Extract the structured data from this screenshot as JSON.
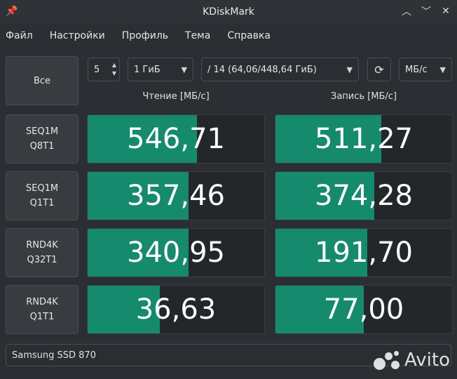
{
  "window": {
    "title": "KDiskMark"
  },
  "menu": [
    "Файл",
    "Настройки",
    "Профиль",
    "Тема",
    "Справка"
  ],
  "toolbar": {
    "all_label": "Все",
    "runs_value": "5",
    "size_value": "1 ГиБ",
    "drive_value": "/ 14 (64,06/448,64 ГиБ)",
    "unit_value": "МБ/с",
    "refresh_icon": "refresh-icon"
  },
  "headers": {
    "read": "Чтение [МБ/с]",
    "write": "Запись [МБ/с]"
  },
  "tests": [
    {
      "line1": "SEQ1M",
      "line2": "Q8T1",
      "read": "546,71",
      "write": "511,27",
      "read_fill": 0.62,
      "write_fill": 0.6
    },
    {
      "line1": "SEQ1M",
      "line2": "Q1T1",
      "read": "357,46",
      "write": "374,28",
      "read_fill": 0.57,
      "write_fill": 0.56
    },
    {
      "line1": "RND4K",
      "line2": "Q32T1",
      "read": "340,95",
      "write": "191,70",
      "read_fill": 0.57,
      "write_fill": 0.52
    },
    {
      "line1": "RND4K",
      "line2": "Q1T1",
      "read": "36,63",
      "write": "77,00",
      "read_fill": 0.41,
      "write_fill": 0.5
    }
  ],
  "status": {
    "device": "Samsung SSD 870"
  },
  "watermark": {
    "text": "Avito"
  }
}
